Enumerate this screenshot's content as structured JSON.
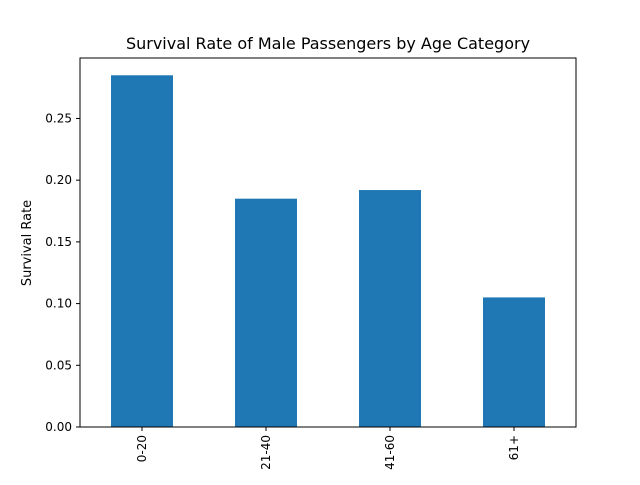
{
  "chart_data": {
    "type": "bar",
    "title": "Survival Rate of Male Passengers by Age Category",
    "xlabel": "",
    "ylabel": "Survival Rate",
    "categories": [
      "0-20",
      "21-40",
      "41-60",
      "61+"
    ],
    "values": [
      0.285,
      0.185,
      0.192,
      0.105
    ],
    "ylim": [
      0,
      0.299
    ],
    "yticks": [
      "0.00",
      "0.05",
      "0.10",
      "0.15",
      "0.20",
      "0.25"
    ],
    "bar_color": "#1f77b4",
    "grid": false,
    "legend": "none"
  }
}
